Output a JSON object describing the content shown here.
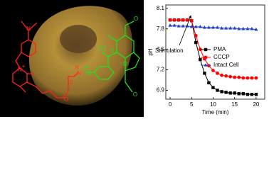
{
  "image_labels": [
    "N",
    "N",
    "+",
    "O",
    "H",
    "N",
    "S",
    "H",
    "N",
    "CO",
    "2",
    "O",
    "O",
    "O"
  ],
  "chart_data": {
    "type": "line",
    "xlabel": "Time (min)",
    "ylabel": "pH",
    "annotation": "Stimulation",
    "x": [
      0,
      1,
      2,
      3,
      4,
      5,
      6,
      7,
      8,
      9,
      10,
      11,
      12,
      13,
      14,
      15,
      16,
      17,
      18,
      19,
      20
    ],
    "series": [
      {
        "name": "PMA",
        "color": "#000000",
        "marker": "square",
        "values": [
          7.93,
          7.93,
          7.93,
          7.93,
          7.93,
          7.92,
          7.6,
          7.35,
          7.15,
          7.01,
          6.94,
          6.9,
          6.88,
          6.87,
          6.86,
          6.86,
          6.85,
          6.85,
          6.84,
          6.84,
          6.84
        ]
      },
      {
        "name": "CCCP",
        "color": "#ff0000",
        "marker": "circle",
        "values": [
          7.93,
          7.93,
          7.93,
          7.93,
          7.93,
          7.92,
          7.7,
          7.5,
          7.36,
          7.26,
          7.19,
          7.15,
          7.12,
          7.11,
          7.1,
          7.09,
          7.09,
          7.08,
          7.08,
          7.08,
          7.08
        ]
      },
      {
        "name": "Intact Cell",
        "color": "#2244cc",
        "marker": "triangle",
        "values": [
          7.85,
          7.85,
          7.84,
          7.84,
          7.84,
          7.83,
          7.83,
          7.83,
          7.82,
          7.82,
          7.82,
          7.82,
          7.81,
          7.81,
          7.81,
          7.81,
          7.8,
          7.8,
          7.8,
          7.8,
          7.79
        ]
      }
    ],
    "xlim": [
      -1,
      22
    ],
    "ylim": [
      6.77,
      8.15
    ],
    "xticks": [
      0,
      5,
      10,
      15,
      20
    ],
    "yticks": [
      6.9,
      7.2,
      7.5,
      7.8,
      8.1
    ],
    "legend": "upper right"
  }
}
